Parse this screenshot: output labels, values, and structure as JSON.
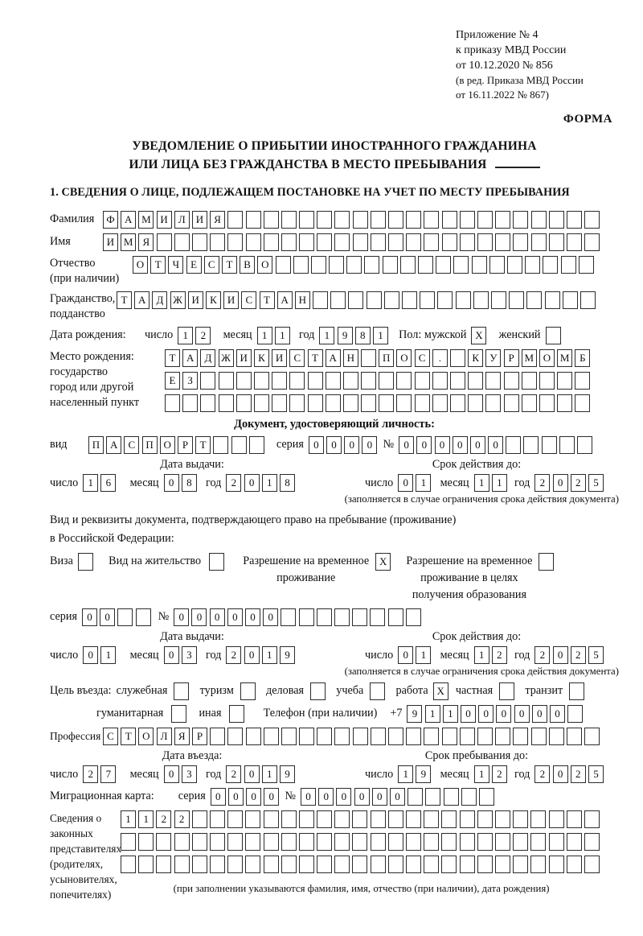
{
  "header": {
    "lines": [
      "Приложение № 4",
      "к приказу МВД России",
      "от 10.12.2020 № 856"
    ],
    "sub_lines": [
      "(в ред. Приказа МВД России",
      "от 16.11.2022 № 867)"
    ],
    "forma": "ФОРМА"
  },
  "title": {
    "line1": "УВЕДОМЛЕНИЕ О ПРИБЫТИИ ИНОСТРАННОГО ГРАЖДАНИНА",
    "line2": "ИЛИ ЛИЦА БЕЗ ГРАЖДАНСТВА В МЕСТО ПРЕБЫВАНИЯ"
  },
  "section1": {
    "heading": "1. СВЕДЕНИЯ О ЛИЦЕ, ПОДЛЕЖАЩЕМ ПОСТАНОВКЕ НА УЧЕТ ПО МЕСТУ ПРЕБЫВАНИЯ"
  },
  "shared": {
    "day": "число",
    "month": "месяц",
    "year": "год",
    "series": "серия",
    "number": "№",
    "issue": "Дата выдачи:",
    "valid": "Срок действия до:",
    "limit_note": "(заполняется в случае ограничения срока действия документа)"
  },
  "surname": {
    "label": "Фамилия",
    "cells": {
      "text": "ФАМИЛИЯ",
      "count": 28
    }
  },
  "firstname": {
    "label": "Имя",
    "cells": {
      "text": "ИМЯ",
      "count": 28
    }
  },
  "patronymic": {
    "label": "Отчество",
    "sublabel": "(при наличии)",
    "cells": {
      "text": "ОТЧЕСТВО",
      "count": 26
    }
  },
  "citizenship": {
    "label": "Гражданство,",
    "sublabel": "подданство",
    "cells": {
      "text": "ТАДЖИКИСТАН",
      "count": 27
    }
  },
  "birth": {
    "label": "Дата рождения:",
    "day": {
      "text": "12",
      "count": 2
    },
    "month": {
      "text": "11",
      "count": 2
    },
    "year": {
      "text": "1981",
      "count": 4
    },
    "sex_label": "Пол: мужской",
    "male": {
      "text": "X",
      "count": 1
    },
    "female_label": "женский",
    "female": {
      "text": "",
      "count": 1
    }
  },
  "birthplace": {
    "label1": "Место рождения:",
    "label2": "государство",
    "label3": "город или другой",
    "label4": "населенный пункт",
    "row1": {
      "text": "ТАДЖИКИСТАН ПОС. КУРМОМБ",
      "count": 24
    },
    "row2": {
      "text": "ЕЗ",
      "count": 24
    },
    "row3": {
      "text": "",
      "count": 24
    }
  },
  "identity_doc": {
    "heading": "Документ, удостоверяющий личность:",
    "type_label": "вид",
    "type": {
      "text": "ПАСПОРТ",
      "count": 10
    },
    "series": {
      "text": "0000",
      "count": 4
    },
    "number": {
      "text": "000000",
      "count": 11
    },
    "issue_day": {
      "text": "16",
      "count": 2
    },
    "issue_month": {
      "text": "08",
      "count": 2
    },
    "issue_year": {
      "text": "2018",
      "count": 4
    },
    "valid_day": {
      "text": "01",
      "count": 2
    },
    "valid_month": {
      "text": "11",
      "count": 2
    },
    "valid_year": {
      "text": "2025",
      "count": 4
    }
  },
  "residence_doc": {
    "line1": "Вид и реквизиты документа, подтверждающего право на пребывание (проживание)",
    "line2": "в Российской Федерации:",
    "visa_label": "Виза",
    "visa": {
      "text": "",
      "count": 1
    },
    "permit_label": "Вид на жительство",
    "permit": {
      "text": "",
      "count": 1
    },
    "temp_label1": "Разрешение на временное",
    "temp_label2": "проживание",
    "temp": {
      "text": "X",
      "count": 1
    },
    "edu_label1": "Разрешение на временное",
    "edu_label2": "проживание в целях",
    "edu_label3": "получения образования",
    "edu": {
      "text": "",
      "count": 1
    },
    "series": {
      "text": "00",
      "count": 4
    },
    "number": {
      "text": "000000",
      "count": 14
    },
    "issue_day": {
      "text": "01",
      "count": 2
    },
    "issue_month": {
      "text": "03",
      "count": 2
    },
    "issue_year": {
      "text": "2019",
      "count": 4
    },
    "valid_day": {
      "text": "01",
      "count": 2
    },
    "valid_month": {
      "text": "12",
      "count": 2
    },
    "valid_year": {
      "text": "2025",
      "count": 4
    }
  },
  "purpose": {
    "label": "Цель въезда:",
    "o1_label": "служебная",
    "o1": {
      "text": "",
      "count": 1
    },
    "o2_label": "туризм",
    "o2": {
      "text": "",
      "count": 1
    },
    "o3_label": "деловая",
    "o3": {
      "text": "",
      "count": 1
    },
    "o4_label": "учеба",
    "o4": {
      "text": "",
      "count": 1
    },
    "o5_label": "работа",
    "o5": {
      "text": "X",
      "count": 1
    },
    "o6_label": "частная",
    "o6": {
      "text": "",
      "count": 1
    },
    "o7_label": "транзит",
    "o7": {
      "text": "",
      "count": 1
    },
    "o8_label": "гуманитарная",
    "o8": {
      "text": "",
      "count": 1
    },
    "o9_label": "иная",
    "o9": {
      "text": "",
      "count": 1
    },
    "phone_label": "Телефон (при наличии)",
    "phone_prefix": "+7",
    "phone": {
      "text": "911000000",
      "count": 10
    }
  },
  "profession": {
    "label": "Профессия",
    "cells": {
      "text": "СТОЛЯР",
      "count": 28
    }
  },
  "entry": {
    "date_label": "Дата въезда:",
    "day": {
      "text": "27",
      "count": 2
    },
    "month": {
      "text": "03",
      "count": 2
    },
    "year": {
      "text": "2019",
      "count": 4
    },
    "stay_label": "Срок пребывания до:",
    "stay_day": {
      "text": "19",
      "count": 2
    },
    "stay_month": {
      "text": "12",
      "count": 2
    },
    "stay_year": {
      "text": "2025",
      "count": 4
    }
  },
  "migration_card": {
    "label": "Миграционная карта:",
    "series": {
      "text": "0000",
      "count": 4
    },
    "number": {
      "text": "000000",
      "count": 11
    }
  },
  "representatives": {
    "labels": [
      "Сведения о",
      "законных",
      "представителях",
      "(родителях,",
      "усыновителях,",
      "попечителях)"
    ],
    "row1": {
      "text": "1122",
      "count": 27
    },
    "row2": {
      "text": "",
      "count": 27
    },
    "row3": {
      "text": "",
      "count": 27
    },
    "note": "(при заполнении указываются фамилия, имя, отчество (при наличии), дата рождения)"
  }
}
